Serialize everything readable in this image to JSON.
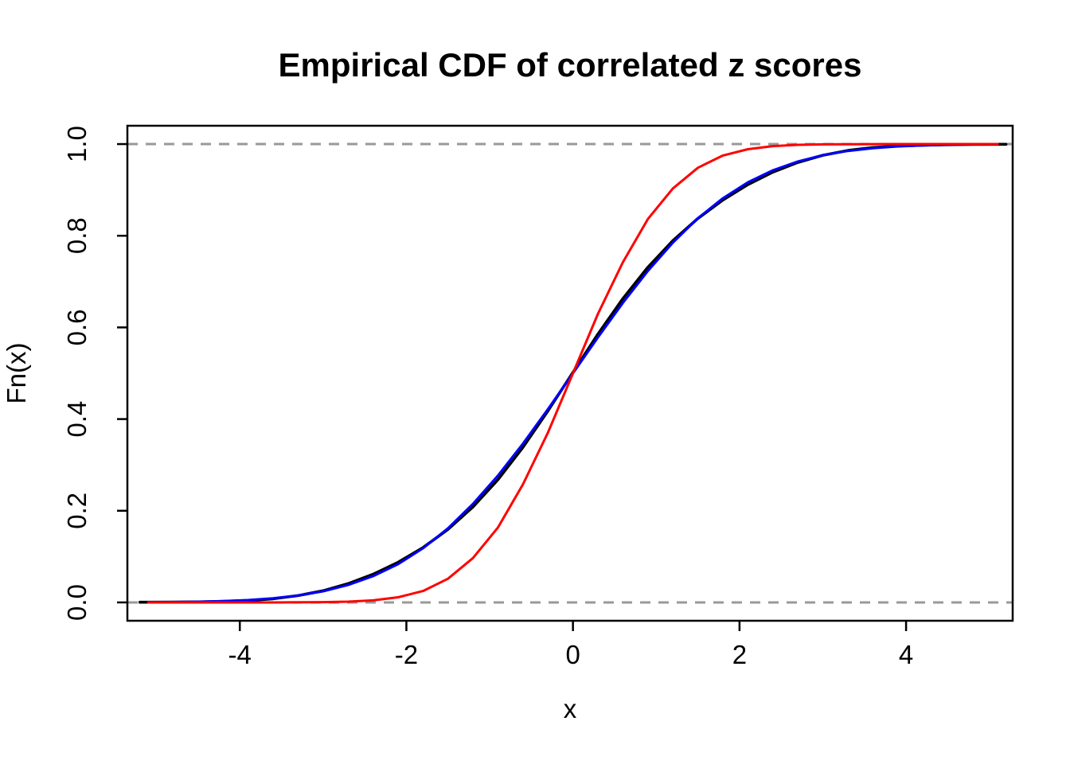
{
  "chart_data": {
    "type": "line",
    "title": "Empirical CDF of correlated z scores",
    "xlabel": "x",
    "ylabel": "Fn(x)",
    "xlim": [
      -5.35,
      5.28
    ],
    "ylim": [
      -0.04,
      1.04
    ],
    "grid": false,
    "legend_position": "none",
    "x_ticks": [
      {
        "value": -4,
        "label": "-4"
      },
      {
        "value": -2,
        "label": "-2"
      },
      {
        "value": 0,
        "label": "0"
      },
      {
        "value": 2,
        "label": "2"
      },
      {
        "value": 4,
        "label": "4"
      }
    ],
    "y_ticks": [
      {
        "value": 0,
        "label": "0.0"
      },
      {
        "value": 0.2,
        "label": "0.2"
      },
      {
        "value": 0.4,
        "label": "0.4"
      },
      {
        "value": 0.6,
        "label": "0.6"
      },
      {
        "value": 0.8,
        "label": "0.8"
      },
      {
        "value": 1,
        "label": "1.0"
      }
    ],
    "reference_lines": [
      {
        "name": "h-line-0",
        "y": 0,
        "color": "#999999",
        "style": "dashed",
        "width": 3
      },
      {
        "name": "h-line-1",
        "y": 1,
        "color": "#999999",
        "style": "dashed",
        "width": 3
      }
    ],
    "series": [
      {
        "name": "black-ecdf-curve",
        "color": "#000000",
        "width": 3.6,
        "x": [
          -5.2,
          -5.1,
          -4.8,
          -4.5,
          -4.2,
          -3.9,
          -3.6,
          -3.3,
          -3.0,
          -2.7,
          -2.4,
          -2.1,
          -1.8,
          -1.5,
          -1.2,
          -0.9,
          -0.6,
          -0.3,
          0,
          0.3,
          0.6,
          0.9,
          1.2,
          1.5,
          1.8,
          2.1,
          2.4,
          2.7,
          3.0,
          3.3,
          3.6,
          3.9,
          4.2,
          4.5,
          4.8,
          5.1,
          5.2
        ],
        "y": [
          0.0004,
          0.0005,
          0.0008,
          0.0012,
          0.0022,
          0.0041,
          0.0079,
          0.0148,
          0.0254,
          0.0409,
          0.0614,
          0.0874,
          0.1198,
          0.1594,
          0.2085,
          0.268,
          0.3385,
          0.4181,
          0.502,
          0.5852,
          0.6628,
          0.7312,
          0.7892,
          0.8378,
          0.878,
          0.9115,
          0.9387,
          0.96,
          0.9756,
          0.986,
          0.9924,
          0.9959,
          0.9976,
          0.9987,
          0.9992,
          0.9995,
          0.9996
        ]
      },
      {
        "name": "blue-cdf-curve",
        "color": "#0000FF",
        "width": 3.0,
        "x": [
          -5.1,
          -4.8,
          -4.5,
          -4.2,
          -3.9,
          -3.6,
          -3.3,
          -3.0,
          -2.7,
          -2.4,
          -2.1,
          -1.8,
          -1.5,
          -1.2,
          -0.9,
          -0.6,
          -0.3,
          0,
          0.3,
          0.6,
          0.9,
          1.2,
          1.5,
          1.8,
          2.1,
          2.4,
          2.7,
          3.0,
          3.3,
          3.6,
          3.9,
          4.2,
          4.5,
          4.8,
          5.1
        ],
        "y": [
          0.0004,
          0.0008,
          0.0015,
          0.0029,
          0.0051,
          0.0089,
          0.015,
          0.0242,
          0.0379,
          0.0572,
          0.0835,
          0.1182,
          0.1618,
          0.215,
          0.2769,
          0.3465,
          0.4219,
          0.5,
          0.5781,
          0.6535,
          0.7231,
          0.785,
          0.8382,
          0.8818,
          0.9165,
          0.9428,
          0.9621,
          0.9758,
          0.985,
          0.9911,
          0.9949,
          0.9971,
          0.9985,
          0.9992,
          0.9996
        ]
      },
      {
        "name": "red-cdf-curve",
        "color": "#FF0000",
        "width": 3.0,
        "x": [
          -5.1,
          -4.8,
          -4.5,
          -4.2,
          -3.9,
          -3.6,
          -3.3,
          -3.0,
          -2.7,
          -2.4,
          -2.1,
          -1.8,
          -1.5,
          -1.2,
          -0.9,
          -0.6,
          -0.3,
          0,
          0.3,
          0.6,
          0.9,
          1.2,
          1.5,
          1.8,
          2.1,
          2.4,
          2.7,
          3.0,
          3.3,
          3.6,
          3.9,
          4.2,
          4.5,
          4.8,
          5.1
        ],
        "y": [
          0.0,
          0.0,
          0.0,
          0.0,
          0.0,
          0.0,
          0.0002,
          0.0006,
          0.0017,
          0.0045,
          0.0113,
          0.025,
          0.0516,
          0.0968,
          0.1635,
          0.2578,
          0.3707,
          0.5,
          0.6293,
          0.7422,
          0.8365,
          0.9032,
          0.9484,
          0.975,
          0.9887,
          0.9955,
          0.9983,
          0.9994,
          0.9998,
          0.9999,
          1,
          1,
          1,
          1,
          1
        ]
      }
    ],
    "axis_color": "#000000",
    "background_color": "#FFFFFF"
  }
}
